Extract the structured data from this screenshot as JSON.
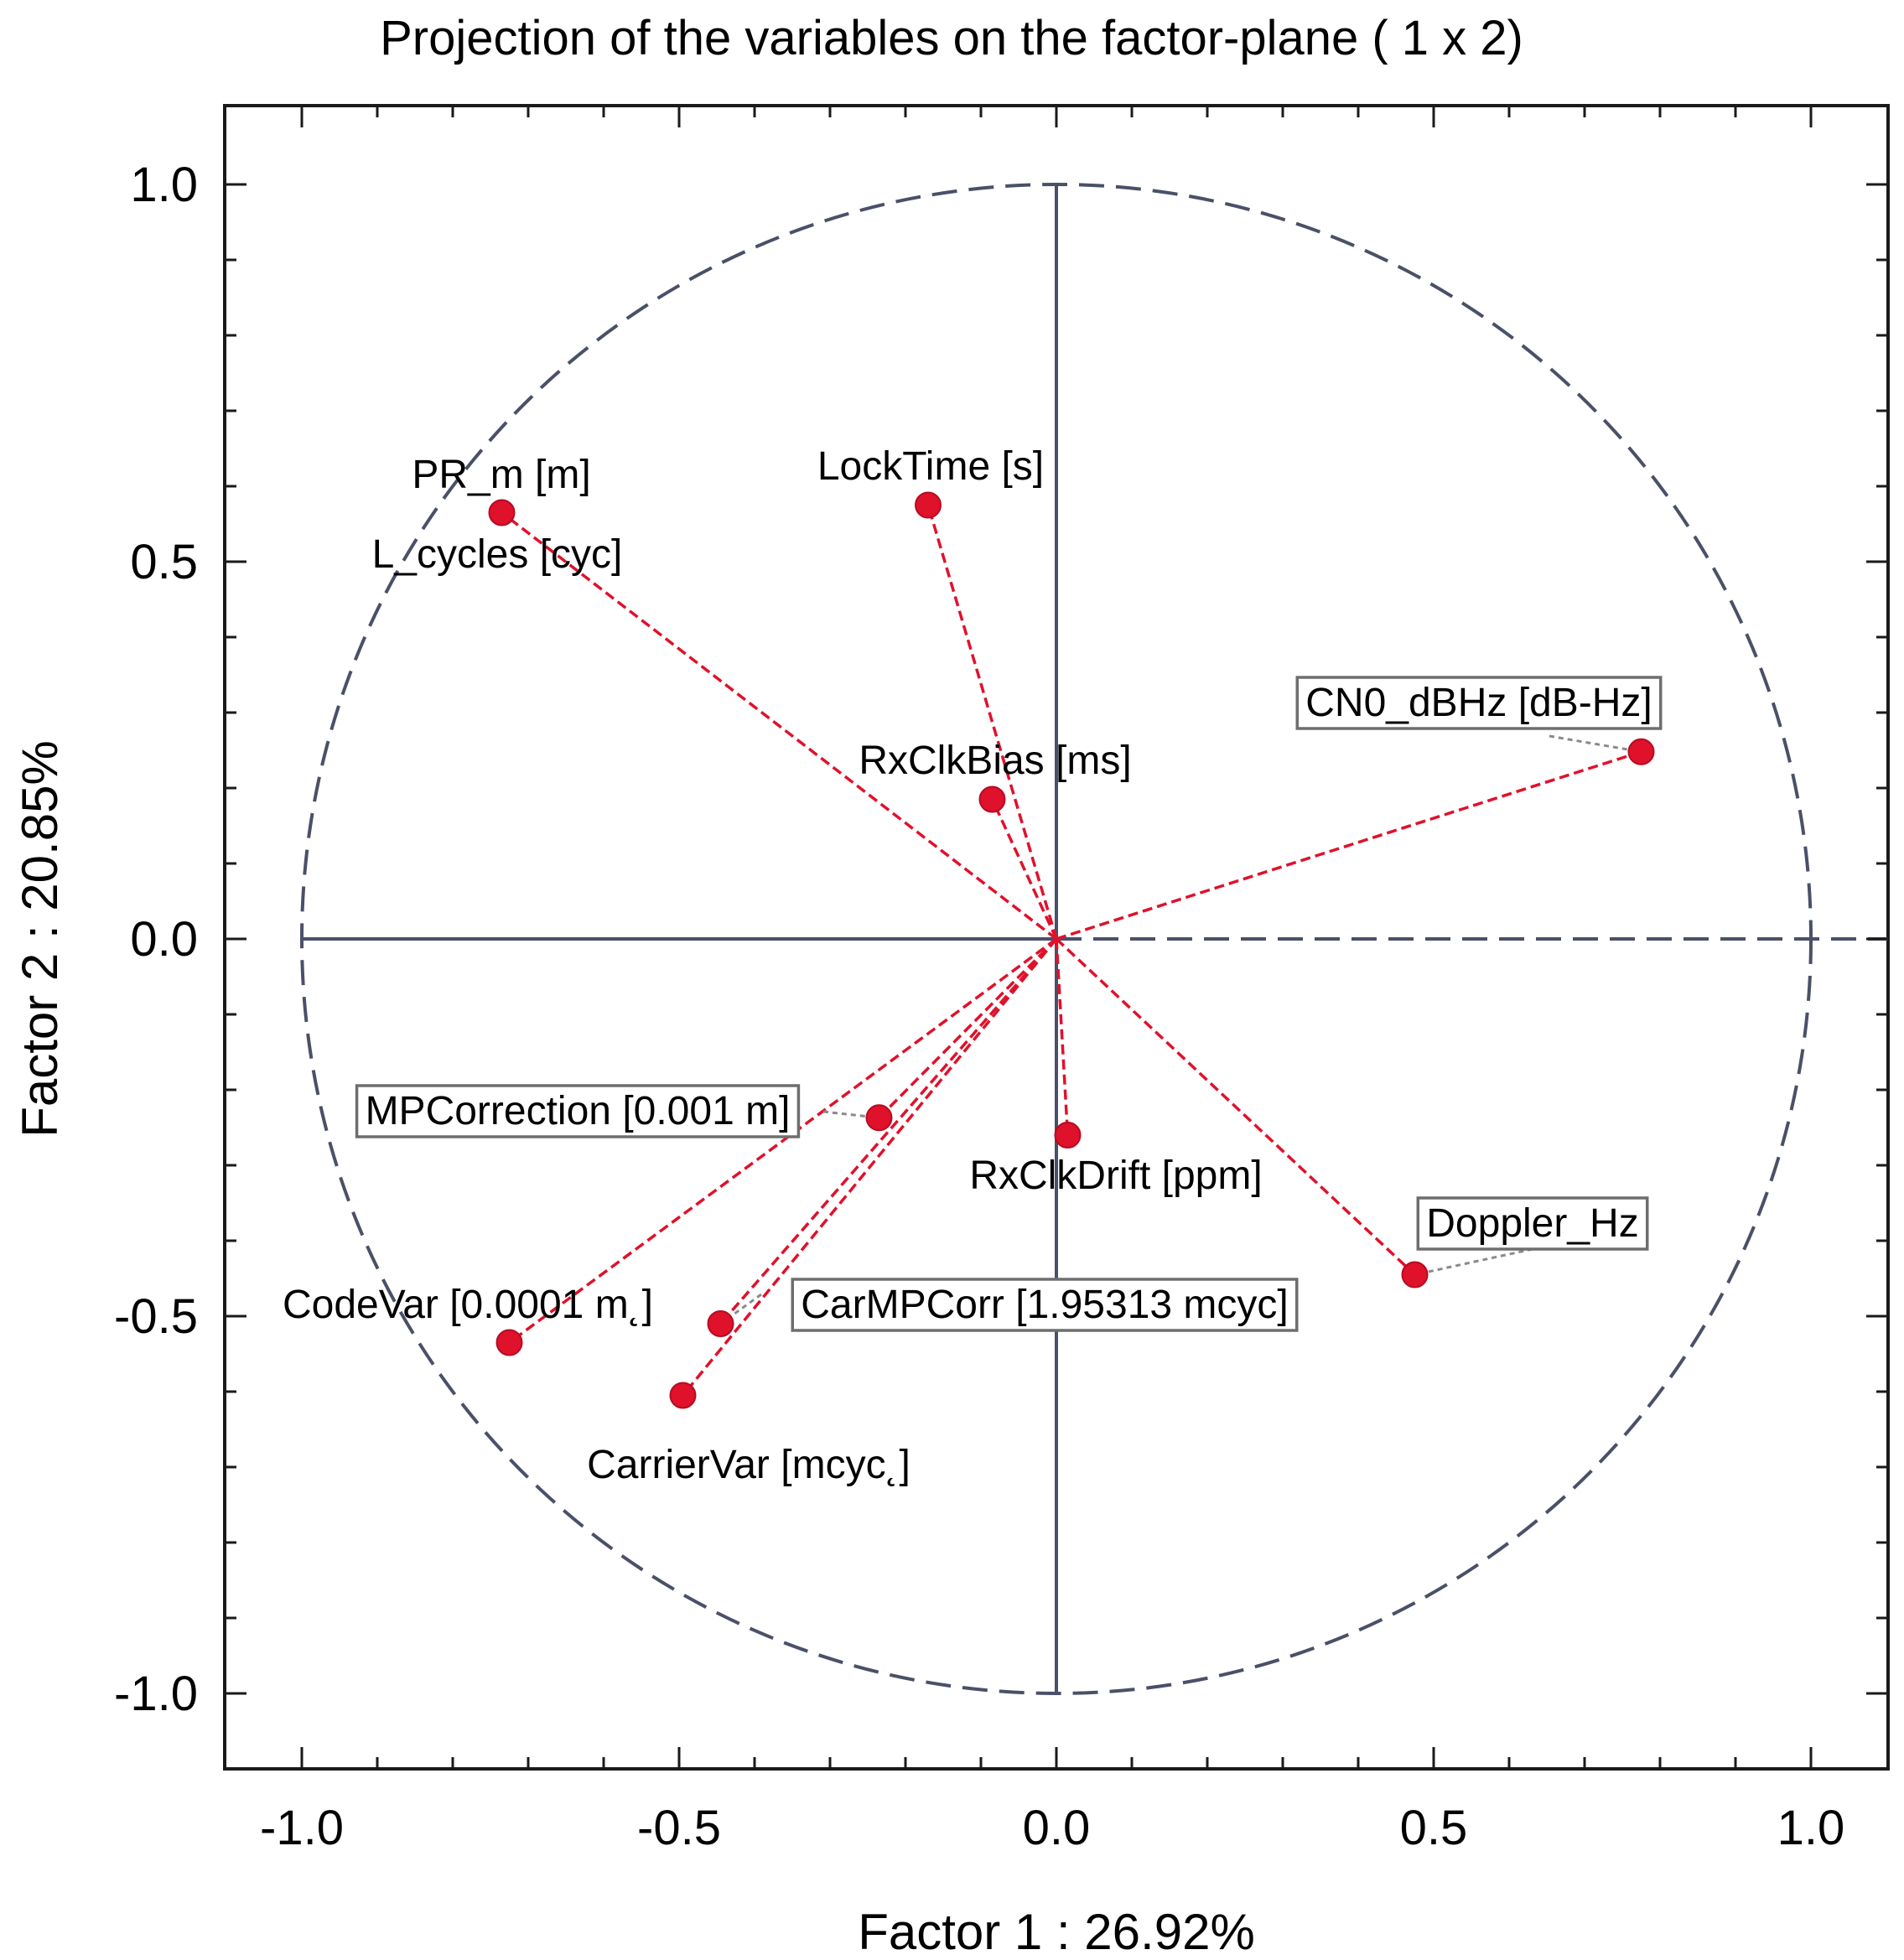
{
  "chart_data": {
    "type": "scatter",
    "title": "Projection of the variables on the factor-plane (  1 x   2)",
    "xlabel": "Factor 1 : 26.92%",
    "ylabel": "Factor 2 : 20.85%",
    "xlim": [
      -1.1,
      1.1
    ],
    "ylim": [
      -1.1,
      1.1
    ],
    "x_ticks": [
      -1.0,
      -0.5,
      0.0,
      0.5,
      1.0
    ],
    "x_tick_labels": [
      "-1.0",
      "-0.5",
      "0.0",
      "0.5",
      "1.0"
    ],
    "y_ticks": [
      1.0,
      0.5,
      0.0,
      -0.5,
      -1.0
    ],
    "y_tick_labels": [
      "1.0",
      "0.5",
      "0.0",
      "-0.5",
      "-1.0"
    ],
    "grid": false,
    "unit_circle": true,
    "series": [
      {
        "name": "variables",
        "color": "#e0112b",
        "points": [
          {
            "id": "pr-m",
            "label": "PR_m [m]",
            "x": -0.735,
            "y": 0.565,
            "boxed": false
          },
          {
            "id": "l-cycles",
            "label": "L_cycles [cyc]",
            "x": -0.735,
            "y": 0.565,
            "boxed": false
          },
          {
            "id": "locktime",
            "label": "LockTime [s]",
            "x": -0.17,
            "y": 0.575,
            "boxed": false
          },
          {
            "id": "rxclkbias",
            "label": "RxClkBias [ms]",
            "x": -0.085,
            "y": 0.185,
            "boxed": false
          },
          {
            "id": "cn0",
            "label": "CN0_dBHz [dB-Hz]",
            "x": 0.775,
            "y": 0.248,
            "boxed": true
          },
          {
            "id": "mpcorrection",
            "label": "MPCorrection [0.001 m]",
            "x": -0.235,
            "y": -0.237,
            "boxed": true
          },
          {
            "id": "rxclkdrift",
            "label": "RxClkDrift [ppm]",
            "x": 0.015,
            "y": -0.26,
            "boxed": false
          },
          {
            "id": "doppler",
            "label": "Doppler_Hz",
            "x": 0.475,
            "y": -0.445,
            "boxed": true
          },
          {
            "id": "codevar",
            "label": "CodeVar [0.0001 m˛]",
            "x": -0.725,
            "y": -0.535,
            "boxed": false
          },
          {
            "id": "carmpcorr",
            "label": "CarMPCorr [1.95313 mcyc]",
            "x": -0.445,
            "y": -0.51,
            "boxed": true
          },
          {
            "id": "carriervar",
            "label": "CarrierVar [mcyc˛]",
            "x": -0.495,
            "y": -0.605,
            "boxed": false
          }
        ]
      }
    ]
  }
}
